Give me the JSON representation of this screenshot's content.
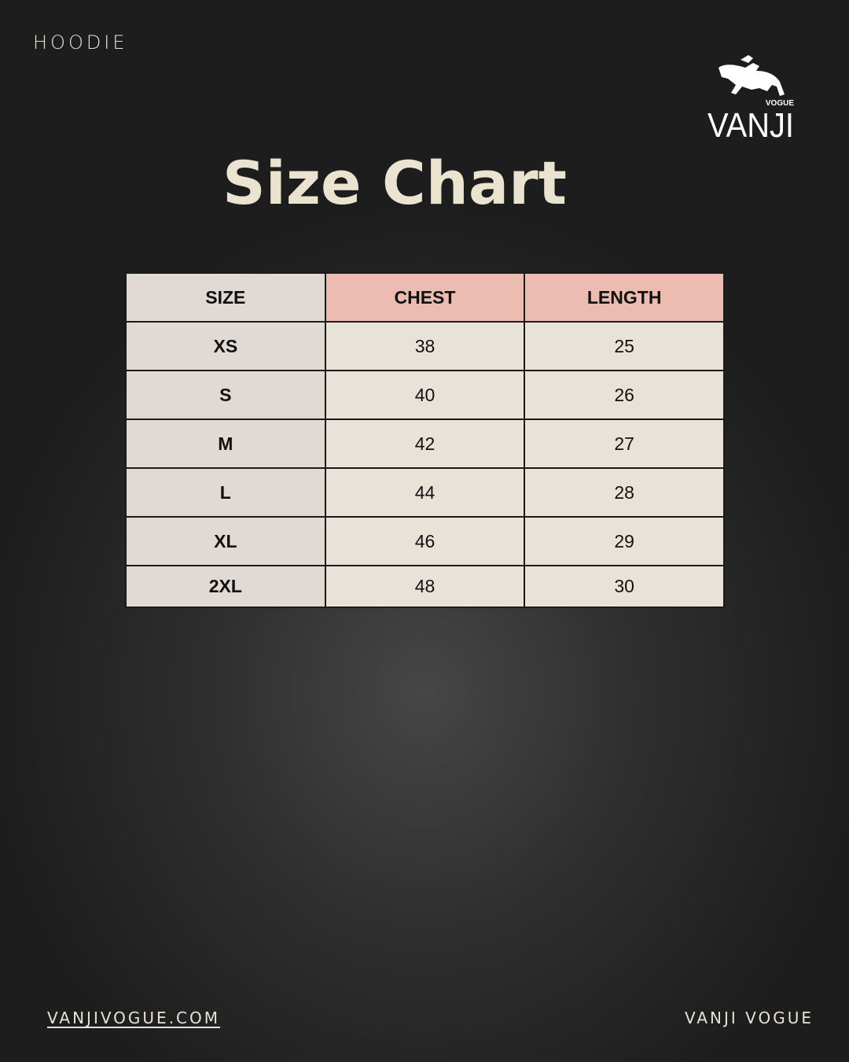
{
  "header": {
    "category": "HOODIE",
    "title": "Size Chart"
  },
  "logo": {
    "text": "VANJI",
    "subtext": "VOGUE",
    "icon": "horse-jumper-icon"
  },
  "table": {
    "columns": [
      "SIZE",
      "CHEST",
      "LENGTH"
    ],
    "rows": [
      [
        "XS",
        "38",
        "25"
      ],
      [
        "S",
        "40",
        "26"
      ],
      [
        "M",
        "42",
        "27"
      ],
      [
        "L",
        "44",
        "28"
      ],
      [
        "XL",
        "46",
        "29"
      ],
      [
        "2XL",
        "48",
        "30"
      ]
    ]
  },
  "footer": {
    "website": "VANJIVOGUE.COM",
    "brand": "VANJI VOGUE"
  },
  "colors": {
    "header_accent": "#edbcb0",
    "size_column": "#e0d9d4",
    "cells": "#e9e2d8",
    "title": "#e9e3cf"
  }
}
